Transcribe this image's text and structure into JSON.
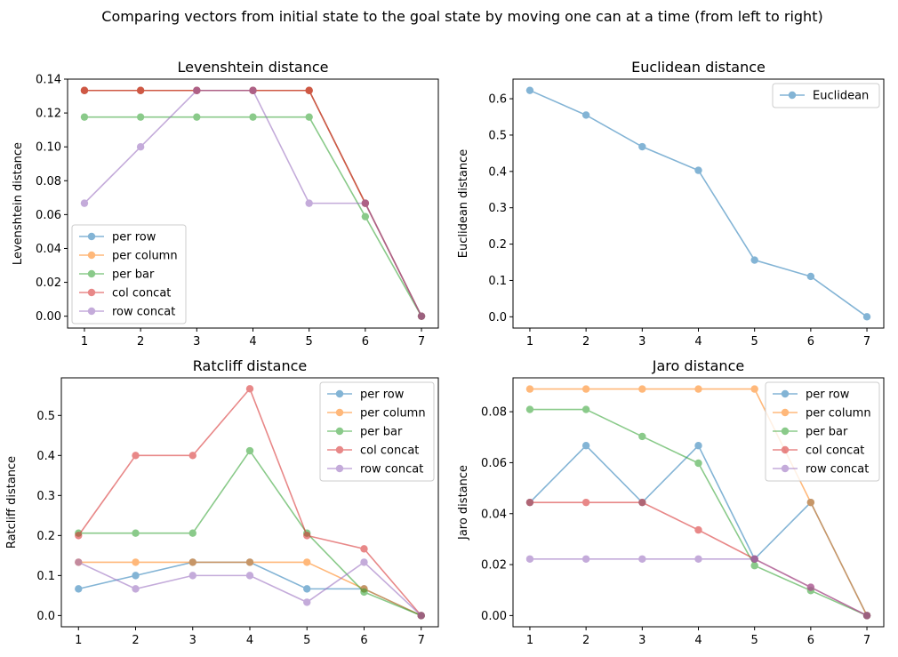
{
  "figure": {
    "suptitle": "Comparing vectors from initial state to the goal state by moving one can at a time (from left to right)"
  },
  "chart_data": [
    {
      "type": "line",
      "title": "Levenshtein distance",
      "xlabel": "",
      "ylabel": "Levenshtein distance",
      "x": [
        1,
        2,
        3,
        4,
        5,
        6,
        7
      ],
      "xlim": [
        0.7,
        7.3
      ],
      "ylim": [
        -0.007,
        0.14
      ],
      "yticks": [
        0.0,
        0.02,
        0.04,
        0.06,
        0.08,
        0.1,
        0.12,
        0.14
      ],
      "ytick_labels": [
        "0.00",
        "0.02",
        "0.04",
        "0.06",
        "0.08",
        "0.10",
        "0.12",
        "0.14"
      ],
      "legend_position": "lower-left",
      "series": [
        {
          "name": "per row",
          "color": "#1f77b4",
          "values": [
            0.1333,
            0.1333,
            0.1333,
            0.1333,
            0.1333,
            0.0667,
            0.0
          ]
        },
        {
          "name": "per column",
          "color": "#ff7f0e",
          "values": [
            0.1333,
            0.1333,
            0.1333,
            0.1333,
            0.1333,
            0.0667,
            0.0
          ]
        },
        {
          "name": "per bar",
          "color": "#2ca02c",
          "values": [
            0.1176,
            0.1176,
            0.1176,
            0.1176,
            0.1176,
            0.0588,
            0.0
          ]
        },
        {
          "name": "col concat",
          "color": "#d62728",
          "values": [
            0.1333,
            0.1333,
            0.1333,
            0.1333,
            0.1333,
            0.0667,
            0.0
          ]
        },
        {
          "name": "row concat",
          "color": "#9467bd",
          "values": [
            0.0667,
            0.1,
            0.1333,
            0.1333,
            0.0667,
            0.0667,
            0.0
          ]
        }
      ]
    },
    {
      "type": "line",
      "title": "Euclidean distance",
      "xlabel": "",
      "ylabel": "Euclidean distance",
      "x": [
        1,
        2,
        3,
        4,
        5,
        6,
        7
      ],
      "xlim": [
        0.7,
        7.3
      ],
      "ylim": [
        -0.031,
        0.654
      ],
      "yticks": [
        0.0,
        0.1,
        0.2,
        0.3,
        0.4,
        0.5,
        0.6
      ],
      "ytick_labels": [
        "0.0",
        "0.1",
        "0.2",
        "0.3",
        "0.4",
        "0.5",
        "0.6"
      ],
      "legend_position": "upper-right",
      "series": [
        {
          "name": "Euclidean",
          "color": "#1f77b4",
          "values": [
            0.623,
            0.555,
            0.468,
            0.403,
            0.156,
            0.111,
            0.0
          ]
        }
      ]
    },
    {
      "type": "line",
      "title": "Ratcliff distance",
      "xlabel": "",
      "ylabel": "Ratcliff distance",
      "x": [
        1,
        2,
        3,
        4,
        5,
        6,
        7
      ],
      "xlim": [
        0.7,
        7.3
      ],
      "ylim": [
        -0.028,
        0.594
      ],
      "yticks": [
        0.0,
        0.1,
        0.2,
        0.3,
        0.4,
        0.5
      ],
      "ytick_labels": [
        "0.0",
        "0.1",
        "0.2",
        "0.3",
        "0.4",
        "0.5"
      ],
      "legend_position": "upper-right",
      "series": [
        {
          "name": "per row",
          "color": "#1f77b4",
          "values": [
            0.0667,
            0.1,
            0.1333,
            0.1333,
            0.0667,
            0.0667,
            0.0
          ]
        },
        {
          "name": "per column",
          "color": "#ff7f0e",
          "values": [
            0.1333,
            0.1333,
            0.1333,
            0.1333,
            0.1333,
            0.0667,
            0.0
          ]
        },
        {
          "name": "per bar",
          "color": "#2ca02c",
          "values": [
            0.2059,
            0.2059,
            0.2059,
            0.4118,
            0.2059,
            0.0588,
            0.0
          ]
        },
        {
          "name": "col concat",
          "color": "#d62728",
          "values": [
            0.2,
            0.4,
            0.4,
            0.5667,
            0.2,
            0.1667,
            0.0
          ]
        },
        {
          "name": "row concat",
          "color": "#9467bd",
          "values": [
            0.1333,
            0.0667,
            0.1,
            0.1,
            0.0333,
            0.1333,
            0.0
          ]
        }
      ]
    },
    {
      "type": "line",
      "title": "Jaro distance",
      "xlabel": "",
      "ylabel": "Jaro distance",
      "x": [
        1,
        2,
        3,
        4,
        5,
        6,
        7
      ],
      "xlim": [
        0.7,
        7.3
      ],
      "ylim": [
        -0.0044,
        0.0933
      ],
      "yticks": [
        0.0,
        0.02,
        0.04,
        0.06,
        0.08
      ],
      "ytick_labels": [
        "0.00",
        "0.02",
        "0.04",
        "0.06",
        "0.08"
      ],
      "legend_position": "upper-right",
      "series": [
        {
          "name": "per row",
          "color": "#1f77b4",
          "values": [
            0.0444,
            0.0667,
            0.0444,
            0.0667,
            0.0222,
            0.0444,
            0.0
          ]
        },
        {
          "name": "per column",
          "color": "#ff7f0e",
          "values": [
            0.0889,
            0.0889,
            0.0889,
            0.0889,
            0.0889,
            0.0444,
            0.0
          ]
        },
        {
          "name": "per bar",
          "color": "#2ca02c",
          "values": [
            0.0809,
            0.0809,
            0.0703,
            0.0598,
            0.0196,
            0.0098,
            0.0
          ]
        },
        {
          "name": "col concat",
          "color": "#d62728",
          "values": [
            0.0444,
            0.0444,
            0.0444,
            0.0336,
            0.0222,
            0.0111,
            0.0
          ]
        },
        {
          "name": "row concat",
          "color": "#9467bd",
          "values": [
            0.0222,
            0.0222,
            0.0222,
            0.0222,
            0.0222,
            0.0111,
            0.0
          ]
        }
      ]
    }
  ]
}
